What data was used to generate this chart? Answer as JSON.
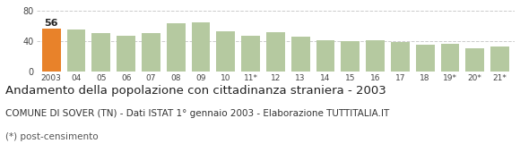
{
  "categories": [
    "2003",
    "04",
    "05",
    "06",
    "07",
    "08",
    "09",
    "10",
    "11*",
    "12",
    "13",
    "14",
    "15",
    "16",
    "17",
    "18",
    "19*",
    "20*",
    "21*"
  ],
  "values": [
    56,
    55,
    50,
    47,
    50,
    63,
    65,
    53,
    47,
    52,
    46,
    41,
    40,
    41,
    39,
    35,
    36,
    31,
    33
  ],
  "bar_color_first": "#e8822a",
  "bar_color_rest": "#b5c9a0",
  "background_color": "#ffffff",
  "grid_color": "#cccccc",
  "ylim": [
    0,
    80
  ],
  "yticks": [
    0,
    40,
    80
  ],
  "title": "Andamento della popolazione con cittadinanza straniera - 2003",
  "subtitle": "COMUNE DI SOVER (TN) - Dati ISTAT 1° gennaio 2003 - Elaborazione TUTTITALIA.IT",
  "footnote": "(*) post-censimento",
  "title_fontsize": 9.5,
  "subtitle_fontsize": 7.5,
  "footnote_fontsize": 7.5,
  "value_label": "56",
  "value_label_fontsize": 8
}
